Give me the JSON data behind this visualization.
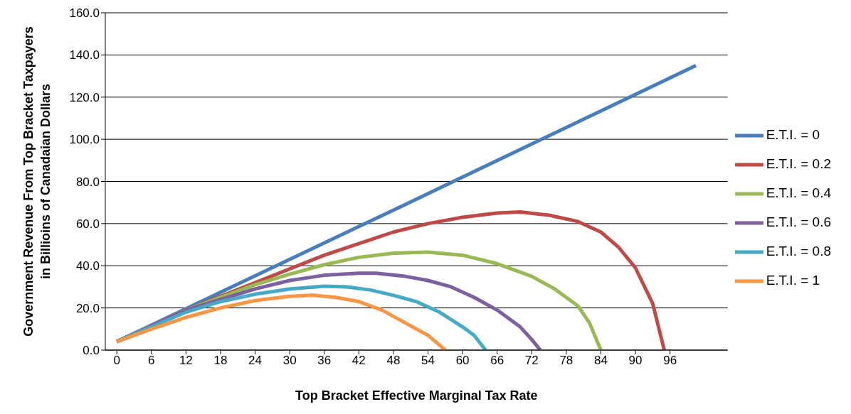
{
  "chart_data": {
    "type": "line",
    "xlabel": "Top Bracket Effective Marginal Tax Rate",
    "ylabel": "Government Revenue From Top Bracket Taxpayers in Billioins of Canadaian Dollars",
    "xlim": [
      -2,
      106
    ],
    "xticks": [
      0,
      6,
      12,
      18,
      24,
      30,
      36,
      42,
      48,
      54,
      60,
      66,
      72,
      78,
      84,
      90,
      96
    ],
    "ylim": [
      0,
      160
    ],
    "yticks": [
      {
        "value": 0,
        "label": "0.0"
      },
      {
        "value": 20,
        "label": "20.0"
      },
      {
        "value": 40,
        "label": "40.0"
      },
      {
        "value": 60,
        "label": "60.0"
      },
      {
        "value": 80,
        "label": "80.0"
      },
      {
        "value": 100,
        "label": "100.0"
      },
      {
        "value": 120,
        "label": "120.0"
      },
      {
        "value": 140,
        "label": "140.0"
      },
      {
        "value": 160,
        "label": "160.0"
      }
    ],
    "grid": "y",
    "legend": "right",
    "marker": "none",
    "line_style": "solid",
    "series": [
      {
        "name": "E.T.I. = 0",
        "color": "#4a7ebb",
        "x": [
          0,
          50,
          100.5
        ],
        "values": [
          4,
          69,
          135
        ]
      },
      {
        "name": "E.T.I. = 0.2",
        "color": "#be4b48",
        "x": [
          0,
          12,
          24,
          36,
          48,
          54,
          60,
          66,
          70,
          75,
          80,
          84,
          87,
          90,
          93,
          95
        ],
        "values": [
          4,
          19,
          32,
          45,
          56,
          60,
          63,
          65,
          65.5,
          64,
          61,
          56,
          49,
          39,
          22,
          0
        ]
      },
      {
        "name": "E.T.I. = 0.4",
        "color": "#98b954",
        "x": [
          0,
          12,
          24,
          30,
          36,
          42,
          48,
          54,
          60,
          66,
          72,
          76,
          80,
          82,
          84
        ],
        "values": [
          4,
          19,
          31,
          36,
          40.5,
          44,
          46,
          46.5,
          45,
          41,
          35,
          29,
          21,
          13,
          0
        ]
      },
      {
        "name": "E.T.I. = 0.6",
        "color": "#7d60a0",
        "x": [
          0,
          12,
          18,
          24,
          30,
          36,
          42,
          45,
          50,
          54,
          58,
          62,
          66,
          70,
          72,
          73.5
        ],
        "values": [
          4,
          19,
          24,
          29,
          33,
          35.5,
          36.5,
          36.5,
          35,
          33,
          30,
          25,
          19,
          11,
          5,
          0
        ]
      },
      {
        "name": "E.T.I. = 0.8",
        "color": "#46aac5",
        "x": [
          0,
          12,
          18,
          24,
          30,
          36,
          40,
          44,
          48,
          52,
          56,
          60,
          62,
          64
        ],
        "values": [
          4,
          18,
          23,
          26.5,
          29,
          30.3,
          30,
          28.5,
          26,
          23,
          18,
          11,
          7,
          0
        ]
      },
      {
        "name": "E.T.I. = 1",
        "color": "#f79646",
        "x": [
          0,
          6,
          12,
          18,
          24,
          30,
          34,
          38,
          42,
          46,
          50,
          54,
          57
        ],
        "values": [
          4,
          10,
          15.5,
          20,
          23.5,
          25.5,
          26,
          25,
          23,
          19,
          13,
          7,
          0
        ]
      }
    ]
  }
}
